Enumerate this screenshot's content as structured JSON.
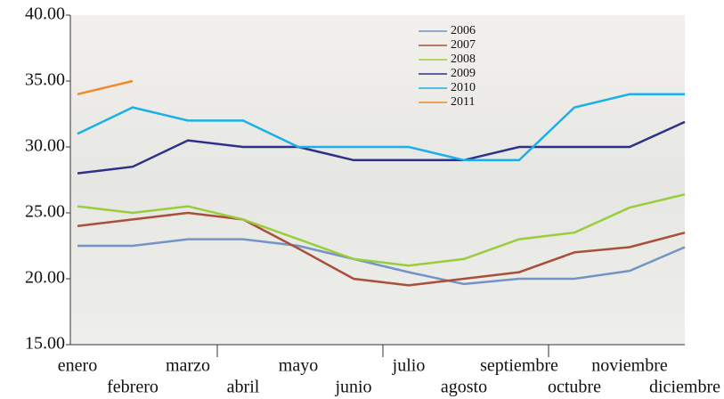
{
  "chart_data": {
    "type": "line",
    "categories": [
      "enero",
      "febrero",
      "marzo",
      "abril",
      "mayo",
      "junio",
      "julio",
      "agosto",
      "septiembre",
      "octubre",
      "noviembre",
      "diciembre"
    ],
    "series": [
      {
        "name": "2006",
        "color": "#7393c9",
        "values": [
          22.5,
          22.5,
          23,
          23,
          22.5,
          21.5,
          20.5,
          19.6,
          20,
          20,
          20.6,
          22.4
        ]
      },
      {
        "name": "2007",
        "color": "#a9503a",
        "values": [
          24,
          24.5,
          25,
          24.5,
          22.3,
          20,
          19.5,
          20,
          20.5,
          22,
          22.4,
          23.5
        ]
      },
      {
        "name": "2008",
        "color": "#9acd3c",
        "values": [
          25.5,
          25,
          25.5,
          24.5,
          23,
          21.5,
          21,
          21.5,
          23,
          23.5,
          25.4,
          26.4
        ]
      },
      {
        "name": "2009",
        "color": "#2e3189",
        "values": [
          28,
          28.5,
          30.5,
          30,
          30,
          29,
          29,
          29,
          30,
          30,
          30,
          31.9
        ]
      },
      {
        "name": "2010",
        "color": "#1ab0e8",
        "values": [
          31,
          33,
          32,
          32,
          30,
          30,
          30,
          29,
          29,
          33,
          34,
          34
        ]
      },
      {
        "name": "2011",
        "color": "#f0892a",
        "values": [
          34,
          35,
          null,
          null,
          null,
          null,
          null,
          null,
          null,
          null,
          null,
          null
        ]
      }
    ],
    "ylim": [
      15,
      40
    ],
    "yticks": [
      {
        "value": 15,
        "label": "15.00"
      },
      {
        "value": 20,
        "label": "20.00"
      },
      {
        "value": 25,
        "label": "25.00"
      },
      {
        "value": 30,
        "label": "30.00"
      },
      {
        "value": 35,
        "label": "35.00"
      },
      {
        "value": 40,
        "label": "40.00"
      }
    ],
    "grid": false,
    "legend": "top"
  }
}
